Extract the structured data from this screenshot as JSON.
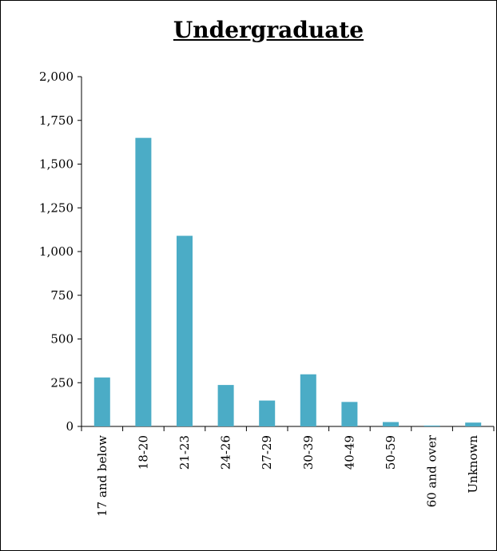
{
  "chart_data": {
    "type": "bar",
    "title": "Undergraduate",
    "xlabel": "",
    "ylabel": "",
    "categories": [
      "17 and below",
      "18-20",
      "21-23",
      "24-26",
      "27-29",
      "30-39",
      "40-49",
      "50-59",
      "60 and over",
      "Unknown"
    ],
    "values": [
      280,
      1650,
      1090,
      237,
      148,
      298,
      140,
      25,
      5,
      22
    ],
    "ylim": [
      0,
      2000
    ],
    "yticks": [
      0,
      250,
      500,
      750,
      1000,
      1250,
      1500,
      1750,
      2000
    ],
    "ytick_labels": [
      "0",
      "250",
      "500",
      "750",
      "1,000",
      "1,250",
      "1,500",
      "1,750",
      "2,000"
    ],
    "grid": false,
    "legend": "none",
    "bar_color": "#4bacc6"
  }
}
